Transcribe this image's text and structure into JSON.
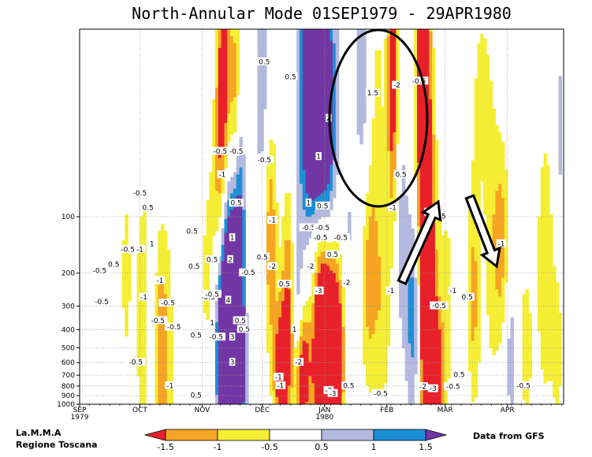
{
  "chart_data": {
    "type": "heatmap",
    "title": "North-Annular Mode 01SEP1979 - 29APR1980",
    "xlabel": "",
    "ylabel": "",
    "y_log_scale": true,
    "y_inverted": true,
    "ylim": [
      1000,
      10
    ],
    "y_ticks": [
      "100",
      "200",
      "300",
      "400",
      "500",
      "600",
      "700",
      "800",
      "900",
      "1000"
    ],
    "y_tick_values": [
      100,
      200,
      300,
      400,
      500,
      600,
      700,
      800,
      900,
      1000
    ],
    "x_ticks": [
      "SEP",
      "OCT",
      "NOV",
      "DEC",
      "JAN",
      "FEB",
      "MAR",
      "APR"
    ],
    "x_tick_days": [
      0,
      30,
      61,
      91,
      122,
      153,
      182,
      213
    ],
    "x_subticks": [
      "1979",
      "1980"
    ],
    "xlim_days": [
      0,
      241
    ],
    "grid": true,
    "colorbar": {
      "levels": [
        "-1.5",
        "-1",
        "-0.5",
        "0.5",
        "1",
        "1.5"
      ],
      "level_values": [
        -1.5,
        -1,
        -0.5,
        0.5,
        1,
        1.5
      ],
      "colors": [
        "#e8202a",
        "#f6a423",
        "#f5ee34",
        "#ffffff",
        "#b3b9df",
        "#1d8fd6",
        "#7336a5"
      ]
    },
    "contour_labels": [
      {
        "text": "-0.5",
        "day": 30,
        "p": 75
      },
      {
        "text": "0.5",
        "day": 34,
        "p": 90
      },
      {
        "text": "-0.5",
        "day": 24,
        "p": 150
      },
      {
        "text": "-1",
        "day": 30,
        "p": 150
      },
      {
        "text": "1",
        "day": 36,
        "p": 140
      },
      {
        "text": "-0.5",
        "day": 10,
        "p": 195
      },
      {
        "text": "0.5",
        "day": 17,
        "p": 180
      },
      {
        "text": "-1",
        "day": 40,
        "p": 220
      },
      {
        "text": "-1",
        "day": 32,
        "p": 270
      },
      {
        "text": "-0.5",
        "day": 11,
        "p": 285
      },
      {
        "text": "-0.5",
        "day": 44,
        "p": 290
      },
      {
        "text": "-0.5",
        "day": 39,
        "p": 360
      },
      {
        "text": "-0.5",
        "day": 47,
        "p": 390
      },
      {
        "text": "-0.5",
        "day": 28,
        "p": 600
      },
      {
        "text": "-1",
        "day": 45,
        "p": 800
      },
      {
        "text": "0.5",
        "day": 56,
        "p": 120
      },
      {
        "text": "0.5",
        "day": 57,
        "p": 185
      },
      {
        "text": "-0.5",
        "day": 64,
        "p": 270
      },
      {
        "text": "0.5",
        "day": 58,
        "p": 430
      },
      {
        "text": "0.5",
        "day": 58,
        "p": 900
      },
      {
        "text": "-0.5",
        "day": 78,
        "p": 45
      },
      {
        "text": "-0.5",
        "day": 70,
        "p": 45
      },
      {
        "text": "-1",
        "day": 71,
        "p": 60
      },
      {
        "text": "0.5",
        "day": 78,
        "p": 85
      },
      {
        "text": "1",
        "day": 76,
        "p": 130
      },
      {
        "text": "0.5",
        "day": 66,
        "p": 170
      },
      {
        "text": "2",
        "day": 75,
        "p": 170
      },
      {
        "text": "-0.5",
        "day": 84,
        "p": 200
      },
      {
        "text": "-0.5",
        "day": 66,
        "p": 260
      },
      {
        "text": "4",
        "day": 74,
        "p": 280
      },
      {
        "text": "1",
        "day": 66,
        "p": 370
      },
      {
        "text": "-0.5",
        "day": 68,
        "p": 440
      },
      {
        "text": "3",
        "day": 76,
        "p": 440
      },
      {
        "text": "3",
        "day": 76,
        "p": 600
      },
      {
        "text": "0.5",
        "day": 80,
        "p": 360
      },
      {
        "text": "0.5",
        "day": 82,
        "p": 400
      },
      {
        "text": "0.5",
        "day": 92,
        "p": 15
      },
      {
        "text": "-0.5",
        "day": 92,
        "p": 50
      },
      {
        "text": "-1",
        "day": 96,
        "p": 105
      },
      {
        "text": "0.5",
        "day": 91,
        "p": 165
      },
      {
        "text": "-2",
        "day": 96,
        "p": 185
      },
      {
        "text": "0.5",
        "day": 102,
        "p": 230
      },
      {
        "text": "-0.5",
        "day": 114,
        "p": 115
      },
      {
        "text": "-0.5",
        "day": 121,
        "p": 115
      },
      {
        "text": "-2",
        "day": 115,
        "p": 185
      },
      {
        "text": "1",
        "day": 107,
        "p": 400
      },
      {
        "text": "-2",
        "day": 109,
        "p": 600
      },
      {
        "text": "-1",
        "day": 99,
        "p": 720
      },
      {
        "text": "-2",
        "day": 124,
        "p": 850
      },
      {
        "text": "-3",
        "day": 126,
        "p": 880
      },
      {
        "text": "-3",
        "day": 119,
        "p": 250
      },
      {
        "text": "0.5",
        "day": 134,
        "p": 800
      },
      {
        "text": "1",
        "day": 119,
        "p": 48
      },
      {
        "text": "0.5",
        "day": 105,
        "p": 18
      },
      {
        "text": "2",
        "day": 124,
        "p": 30
      },
      {
        "text": "1",
        "day": 114,
        "p": 85
      },
      {
        "text": "0.5",
        "day": 121,
        "p": 88
      },
      {
        "text": "-2",
        "day": 158,
        "p": 20
      },
      {
        "text": "-0.5",
        "day": 169,
        "p": 19
      },
      {
        "text": "1.5",
        "day": 146,
        "p": 22
      },
      {
        "text": "0.5",
        "day": 160,
        "p": 60
      },
      {
        "text": "-1",
        "day": 156,
        "p": 90
      },
      {
        "text": "2",
        "day": 173,
        "p": 95
      },
      {
        "text": "-0.5",
        "day": 179,
        "p": 100
      },
      {
        "text": "-0.5",
        "day": 120,
        "p": 130
      },
      {
        "text": "0.5",
        "day": 126,
        "p": 160
      },
      {
        "text": "-0.5",
        "day": 130,
        "p": 130
      },
      {
        "text": "-2",
        "day": 133,
        "p": 225
      },
      {
        "text": "1",
        "day": 167,
        "p": 165
      },
      {
        "text": "-1",
        "day": 155,
        "p": 250
      },
      {
        "text": "-0.5",
        "day": 179,
        "p": 300
      },
      {
        "text": "-1",
        "day": 186,
        "p": 250
      },
      {
        "text": "0.5",
        "day": 193,
        "p": 270
      },
      {
        "text": "-2",
        "day": 171,
        "p": 810
      },
      {
        "text": "-3",
        "day": 176,
        "p": 830
      },
      {
        "text": "-0.5",
        "day": 186,
        "p": 810
      },
      {
        "text": "-0.5",
        "day": 150,
        "p": 880
      },
      {
        "text": "-0.5",
        "day": 221,
        "p": 800
      },
      {
        "text": "-1",
        "day": 210,
        "p": 140
      },
      {
        "text": "0.5",
        "day": 189,
        "p": 700
      },
      {
        "text": "-1",
        "day": 100,
        "p": 800
      }
    ],
    "annotations": [
      {
        "type": "ellipse",
        "text": ""
      },
      {
        "type": "arrow",
        "text": ""
      },
      {
        "type": "arrow",
        "text": ""
      }
    ]
  },
  "credits": {
    "left_line1": "La.M.M.A",
    "left_line2": "Regione Toscana",
    "right": "Data from GFS"
  }
}
